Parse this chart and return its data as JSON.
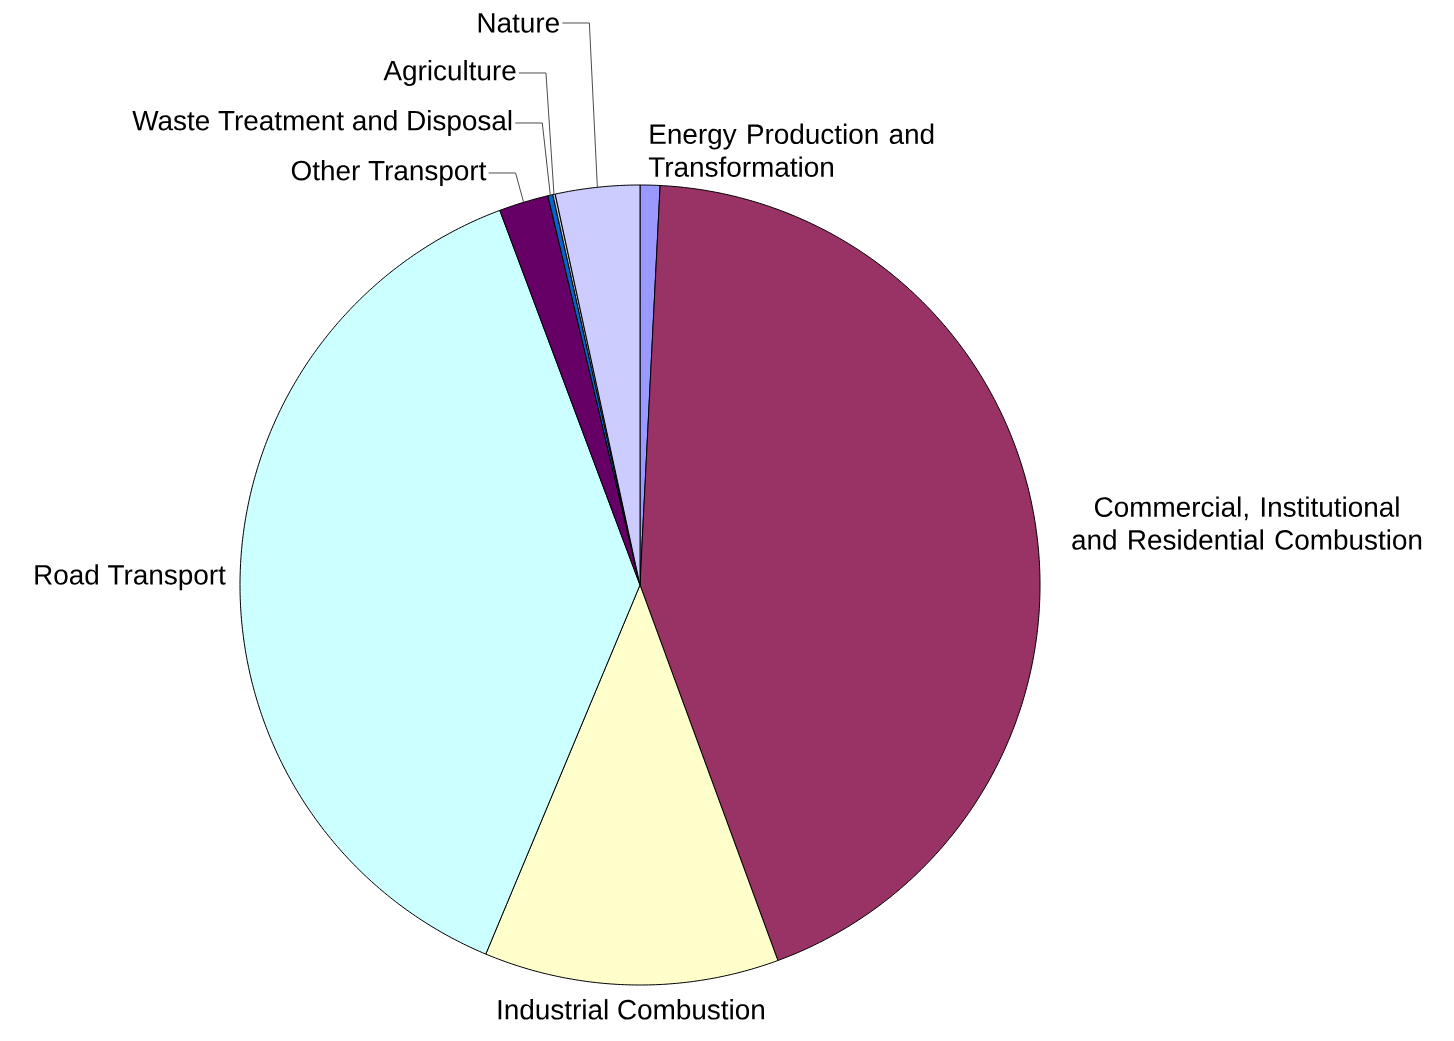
{
  "chart_data": {
    "type": "pie",
    "categories": [
      "Energy Production and Transformation",
      "Commercial, Institutional and Residential Combustion",
      "Industrial Combustion",
      "Road Transport",
      "Other Transport",
      "Waste Treatment and Disposal",
      "Agriculture",
      "Nature"
    ],
    "values": [
      0.8,
      43.6,
      11.9,
      38.0,
      2.0,
      0.2,
      0.1,
      3.4
    ],
    "colors": [
      "#9999ff",
      "#993366",
      "#ffffcc",
      "#ccffff",
      "#660066",
      "#0066cc",
      "#c0c0c0",
      "#ccccff"
    ]
  }
}
